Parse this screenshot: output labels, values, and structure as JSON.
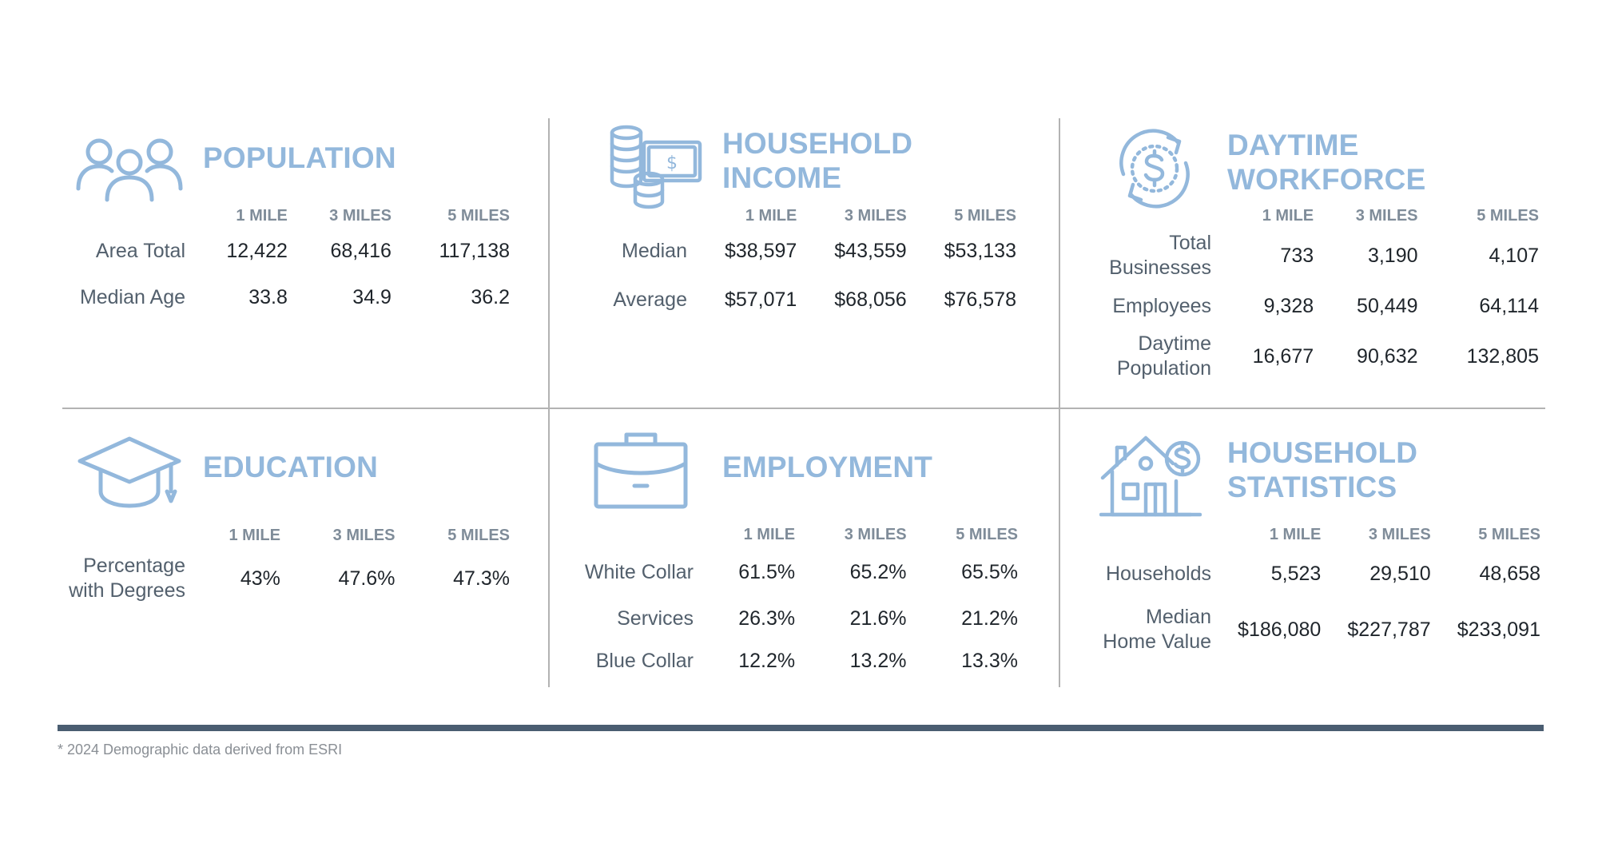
{
  "columns": [
    "1 MILE",
    "3 MILES",
    "5 MILES"
  ],
  "colors": {
    "accent": "#93b8dc",
    "divider": "#b3b3b3",
    "footer_bar": "#4a5d71"
  },
  "sections": {
    "population": {
      "title_lines": [
        "POPULATION"
      ],
      "icon": "people-icon",
      "rows": [
        {
          "label": [
            "Area Total"
          ],
          "values": [
            "12,422",
            "68,416",
            "117,138"
          ]
        },
        {
          "label": [
            "Median Age"
          ],
          "values": [
            "33.8",
            "34.9",
            "36.2"
          ]
        }
      ]
    },
    "household_income": {
      "title_lines": [
        "HOUSEHOLD",
        "INCOME"
      ],
      "icon": "money-coins-icon",
      "rows": [
        {
          "label": [
            "Median"
          ],
          "values": [
            "$38,597",
            "$43,559",
            "$53,133"
          ]
        },
        {
          "label": [
            "Average"
          ],
          "values": [
            "$57,071",
            "$68,056",
            "$76,578"
          ]
        }
      ]
    },
    "daytime_workforce": {
      "title_lines": [
        "DAYTIME",
        "WORKFORCE"
      ],
      "icon": "dollar-cycle-icon",
      "rows": [
        {
          "label": [
            "Total",
            "Businesses"
          ],
          "values": [
            "733",
            "3,190",
            "4,107"
          ]
        },
        {
          "label": [
            "Employees"
          ],
          "values": [
            "9,328",
            "50,449",
            "64,114"
          ]
        },
        {
          "label": [
            "Daytime",
            "Population"
          ],
          "values": [
            "16,677",
            "90,632",
            "132,805"
          ]
        }
      ]
    },
    "education": {
      "title_lines": [
        "EDUCATION"
      ],
      "icon": "graduation-cap-icon",
      "rows": [
        {
          "label": [
            "Percentage",
            "with Degrees"
          ],
          "values": [
            "43%",
            "47.6%",
            "47.3%"
          ]
        }
      ]
    },
    "employment": {
      "title_lines": [
        "EMPLOYMENT"
      ],
      "icon": "briefcase-icon",
      "rows": [
        {
          "label": [
            "White Collar"
          ],
          "values": [
            "61.5%",
            "65.2%",
            "65.5%"
          ]
        },
        {
          "label": [
            "Services"
          ],
          "values": [
            "26.3%",
            "21.6%",
            "21.2%"
          ]
        },
        {
          "label": [
            "Blue Collar"
          ],
          "values": [
            "12.2%",
            "13.2%",
            "13.3%"
          ]
        }
      ]
    },
    "household_statistics": {
      "title_lines": [
        "HOUSEHOLD",
        "STATISTICS"
      ],
      "icon": "house-dollar-icon",
      "rows": [
        {
          "label": [
            "Households"
          ],
          "values": [
            "5,523",
            "29,510",
            "48,658"
          ]
        },
        {
          "label": [
            "Median",
            "Home Value"
          ],
          "values": [
            "$186,080",
            "$227,787",
            "$233,091"
          ]
        }
      ]
    }
  },
  "footnote": "* 2024 Demographic data derived from ESRI"
}
